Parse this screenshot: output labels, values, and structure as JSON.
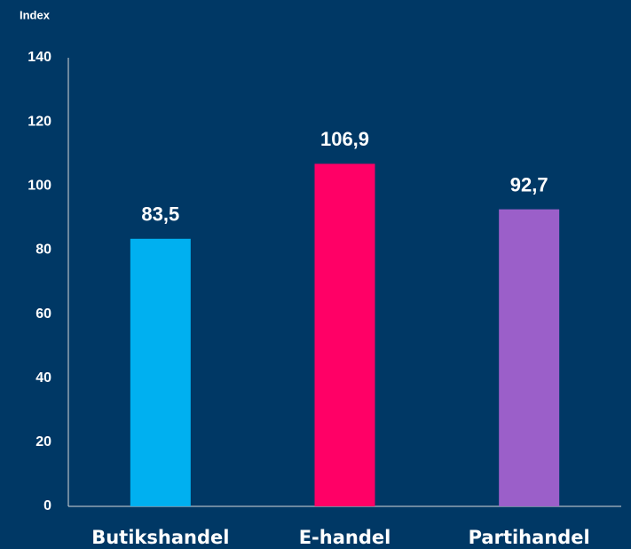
{
  "chart_data": {
    "type": "bar",
    "ylabel": "Index",
    "categories": [
      "Butikshandel",
      "E-handel",
      "Partihandel"
    ],
    "values": [
      83.5,
      106.9,
      92.7
    ],
    "value_labels": [
      "83,5",
      "106,9",
      "92,7"
    ],
    "colors": [
      "#00b0f0",
      "#ff0066",
      "#9b5fc9"
    ],
    "background": "#003865",
    "ylim": [
      0,
      140
    ],
    "yticks": [
      0,
      20,
      40,
      60,
      80,
      100,
      120,
      140
    ],
    "grid": false
  }
}
